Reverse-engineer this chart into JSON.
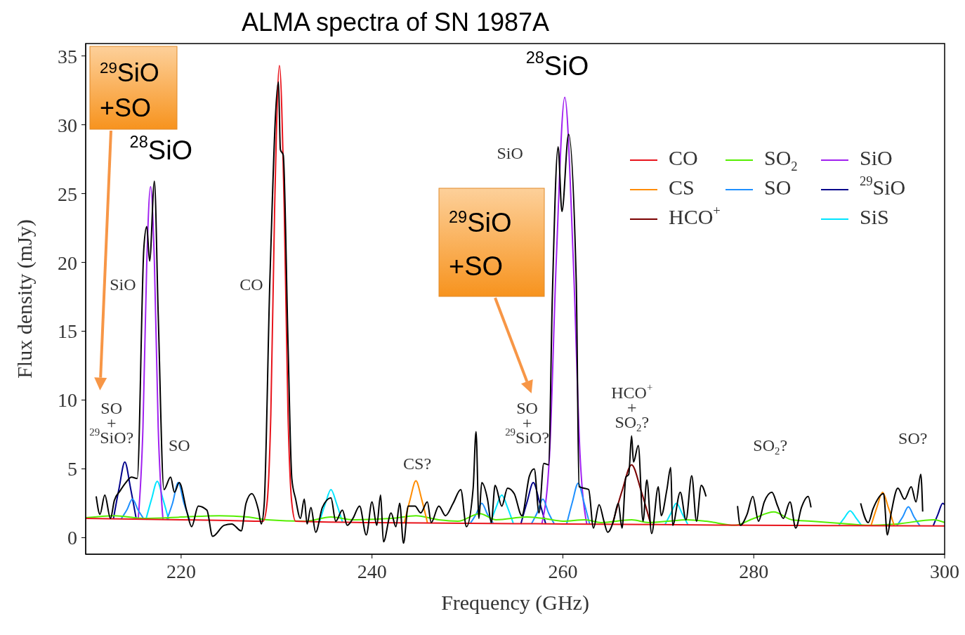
{
  "chart_data": {
    "type": "line",
    "title": "ALMA spectra of SN 1987A",
    "xlabel": "Frequency (GHz)",
    "ylabel": "Flux density (mJy)",
    "xlim": [
      210,
      300
    ],
    "xticks": [
      220,
      240,
      260,
      280,
      300
    ],
    "ylim": [
      -1.2,
      35.9
    ],
    "yticks": [
      0,
      5,
      10,
      15,
      20,
      25,
      30,
      35
    ],
    "legend": "top right",
    "annotations": [
      "$^{28}$SiO",
      "$^{28}$SiO",
      "$^{29}$SiO\n+SO",
      "$^{29}$SiO\n+SO",
      "SiO",
      "SiO",
      "CO",
      "SO\n+\n$^{29}$SiO?",
      "SO",
      "CS?",
      "SO\n+\n$^{29}$SiO?",
      "HCO$^{+}$\n+\nSO$_{2}$?",
      "SO$_{2}$?",
      "SO?"
    ],
    "series": [
      {
        "name": "CO",
        "color": "#e8141c",
        "x": [
          210,
          215,
          220,
          225,
          228.6,
          229.0,
          229.4,
          229.8,
          230.3,
          230.8,
          231.2,
          231.6,
          232.0,
          240,
          250,
          260,
          270,
          280,
          290,
          300
        ],
        "values": [
          1.4,
          1.35,
          1.3,
          1.25,
          1.2,
          2.5,
          9,
          24,
          34.3,
          24,
          9,
          2.5,
          1.2,
          1.1,
          1.05,
          1.0,
          0.95,
          0.9,
          0.88,
          0.85
        ]
      },
      {
        "name": "CS",
        "color": "#ff8c00",
        "x": [
          243.4,
          244.0,
          244.6,
          245.2,
          245.8,
          270,
          292.3,
          292.9,
          293.5,
          294.1,
          294.7
        ],
        "values": [
          1.1,
          2.8,
          4.13,
          2.8,
          1.1,
          null,
          0.9,
          2.2,
          3.3,
          2.2,
          0.9
        ]
      },
      {
        "name": "HCO$^{+}$",
        "color": "#7a0000",
        "x": [
          265.2,
          266.2,
          267.2,
          268.2,
          269.2
        ],
        "values": [
          1.0,
          3.4,
          5.3,
          3.4,
          1.0
        ]
      },
      {
        "name": "SO$_{2}$",
        "color": "#55ee00",
        "x": [
          210,
          213,
          216,
          220,
          224,
          227,
          229,
          233,
          235.7,
          238,
          242,
          244.6,
          247,
          249,
          251.3,
          253,
          256.2,
          258,
          260,
          262.3,
          264,
          267.2,
          269,
          271,
          273,
          275,
          278,
          280,
          282.1,
          284,
          286,
          288,
          290,
          292,
          295,
          298.9,
          300
        ],
        "values": [
          1.45,
          1.6,
          1.4,
          1.5,
          1.6,
          1.5,
          1.3,
          1.2,
          1.5,
          1.3,
          1.4,
          1.6,
          1.3,
          1.2,
          1.75,
          1.3,
          1.5,
          1.4,
          1.2,
          1.3,
          1.1,
          1.3,
          1.1,
          1.2,
          1.3,
          1.2,
          0.9,
          1.4,
          1.87,
          1.3,
          1.2,
          1.1,
          1.0,
          0.9,
          1.0,
          1.3,
          1.1
        ]
      },
      {
        "name": "SO",
        "color": "#1e90ff",
        "x": [
          213.7,
          214.3,
          214.9,
          215.5,
          216.1,
          217,
          218.5,
          219.1,
          219.7,
          220.3,
          220.9,
          236,
          250.3,
          250.9,
          251.5,
          252.1,
          252.7,
          255,
          256.7,
          257.3,
          257.9,
          258.5,
          259.1,
          259.6,
          260.4,
          261.0,
          261.6,
          262.2,
          262.8,
          280,
          295.0,
          295.6,
          296.2,
          296.8,
          297.4
        ],
        "values": [
          1.35,
          2.0,
          2.8,
          2.0,
          1.35,
          null,
          1.3,
          2.5,
          4.0,
          2.5,
          1.3,
          null,
          1.05,
          1.7,
          2.5,
          1.7,
          1.05,
          null,
          1.0,
          1.8,
          2.8,
          1.8,
          1.0,
          null,
          1.0,
          2.6,
          3.96,
          2.6,
          1.0,
          null,
          0.87,
          1.5,
          2.24,
          1.5,
          0.87
        ]
      },
      {
        "name": "SiO",
        "color": "#a020f0",
        "x": [
          215.5,
          216.0,
          216.4,
          216.8,
          217.2,
          217.6,
          218.1,
          240,
          257.8,
          258.6,
          259.3,
          260.2,
          261.1,
          261.8,
          262.5
        ],
        "values": [
          1.3,
          8,
          20,
          25.5,
          20,
          8,
          1.3,
          null,
          1.0,
          6,
          20,
          32.0,
          20,
          6,
          1.0
        ]
      },
      {
        "name": "$^{29}$SiO",
        "color": "#00008b",
        "x": [
          212.9,
          213.5,
          214.1,
          214.7,
          215.3,
          235,
          255.6,
          256.25,
          256.9,
          257.55,
          258.2,
          280,
          298.8,
          299.3,
          299.8,
          300
        ],
        "values": [
          1.35,
          3.6,
          5.5,
          3.6,
          1.35,
          null,
          1.0,
          2.6,
          4.0,
          2.6,
          1.0,
          null,
          0.86,
          1.7,
          2.5,
          2.4
        ]
      },
      {
        "name": "SiS",
        "color": "#00e5ff",
        "x": [
          216.3,
          216.9,
          217.5,
          218.1,
          218.7,
          226,
          234.5,
          235.1,
          235.7,
          236.3,
          236.9,
          245,
          252.4,
          253.0,
          253.6,
          254.2,
          254.8,
          262,
          270.7,
          271.3,
          271.9,
          272.5,
          273.1,
          280,
          288.9,
          289.5,
          290.1,
          290.7,
          291.3
        ],
        "values": [
          1.3,
          2.8,
          4.1,
          2.8,
          1.3,
          null,
          1.15,
          2.45,
          3.5,
          2.45,
          1.15,
          null,
          1.05,
          2.2,
          3.1,
          2.2,
          1.05,
          null,
          0.95,
          1.75,
          2.5,
          1.75,
          0.95,
          null,
          0.88,
          1.45,
          1.95,
          1.45,
          0.88
        ]
      },
      {
        "color": "#000000",
        "x": [
          211.1,
          211.5,
          212.0,
          212.6,
          213.0,
          213.6,
          214.2,
          214.8,
          215.4,
          216.1,
          216.4,
          216.7,
          217.2,
          217.6,
          218.2,
          218.9,
          219.3,
          219.8,
          220.6,
          221.1,
          221.8,
          222.7,
          223.3,
          224.5,
          225.3,
          226.3,
          226.8,
          227.4,
          228.1,
          228.4,
          228.7,
          229.3,
          230.2,
          230.4,
          230.7,
          231.2,
          231.6,
          232.0,
          232.5,
          232.9,
          233.2,
          233.6,
          234.1,
          234.8,
          235.7,
          236.2,
          236.9,
          237.4,
          238.0,
          238.7,
          239.4,
          240.0,
          240.5,
          240.9,
          241.2,
          242.0,
          242.5,
          242.9,
          243.3,
          243.8,
          244.5,
          245.1,
          245.8,
          246.2,
          247.0,
          247.7,
          248.5,
          249.3,
          249.9,
          250.6,
          250.9,
          251.2,
          251.5,
          252.1,
          252.5,
          252.9,
          253.6,
          254.2,
          254.9,
          255.7,
          256.5,
          257.0,
          257.5,
          258.0,
          258.5,
          258.9,
          259.5,
          259.9,
          260.6,
          261.4,
          261.7,
          262.2,
          262.7,
          263.2,
          263.8,
          264.3,
          264.7,
          265.3,
          265.8,
          266.2,
          266.6,
          266.9,
          267.2,
          267.4,
          267.9,
          268.4,
          268.8,
          269.3,
          270.0,
          270.3,
          270.9,
          271.3,
          271.5,
          272.3,
          272.9,
          273.5,
          274.0,
          274.5,
          275.0,
          276.5,
          278.3,
          278.6,
          279.3,
          279.9,
          280.5,
          281.1,
          281.9,
          282.5,
          283.1,
          283.8,
          284.4,
          285.0,
          285.7,
          286.0,
          288.5,
          291.2,
          292.0,
          292.5,
          293.6,
          294.0,
          294.4,
          295.1,
          295.8,
          296.5,
          297.0,
          297.5,
          297.7
        ],
        "values": [
          3.0,
          1.7,
          3.1,
          1.4,
          2.7,
          3.4,
          4.0,
          4.4,
          4.3,
          21.1,
          22.6,
          20.1,
          25.9,
          16.2,
          3.5,
          4.4,
          3.3,
          4.0,
          1.9,
          0.8,
          2.3,
          2.0,
          0.1,
          0.9,
          1.0,
          0.5,
          2.5,
          3.2,
          2.0,
          1.0,
          2.4,
          18.7,
          33.1,
          28.2,
          27.8,
          14.1,
          4.3,
          2.8,
          1.4,
          2.8,
          1.0,
          2.2,
          0.4,
          2.2,
          2.9,
          1.2,
          2.0,
          0.9,
          1.4,
          2.3,
          0.2,
          2.6,
          0.9,
          3.1,
          -0.3,
          1.8,
          0.8,
          2.5,
          -0.4,
          2.3,
          2.3,
          1.8,
          2.6,
          1.1,
          2.3,
          1.6,
          2.5,
          3.5,
          0.8,
          3.6,
          7.7,
          1.4,
          4.0,
          2.8,
          1.1,
          3.8,
          2.3,
          3.6,
          3.2,
          1.6,
          4.5,
          5.0,
          1.8,
          5.4,
          5.3,
          17.6,
          28.4,
          23.7,
          29.3,
          18.6,
          3.7,
          3.6,
          3.5,
          0.7,
          2.4,
          1.2,
          0.4,
          1.2,
          2.5,
          0.7,
          4.4,
          4.6,
          7.4,
          5.5,
          6.7,
          1.2,
          4.2,
          0.3,
          3.7,
          1.6,
          3.5,
          5.1,
          0.9,
          3.3,
          1.3,
          4.5,
          1.2,
          3.8,
          3.0,
          null,
          2.3,
          0.9,
          1.7,
          3.0,
          1.2,
          2.6,
          3.3,
          2.3,
          1.4,
          2.6,
          0.7,
          2.2,
          3.0,
          2.2,
          null,
          2.5,
          1.1,
          2.1,
          3.2,
          0.2,
          1.8,
          3.6,
          2.8,
          3.7,
          2.6,
          4.6,
          1.9
        ]
      }
    ]
  }
}
